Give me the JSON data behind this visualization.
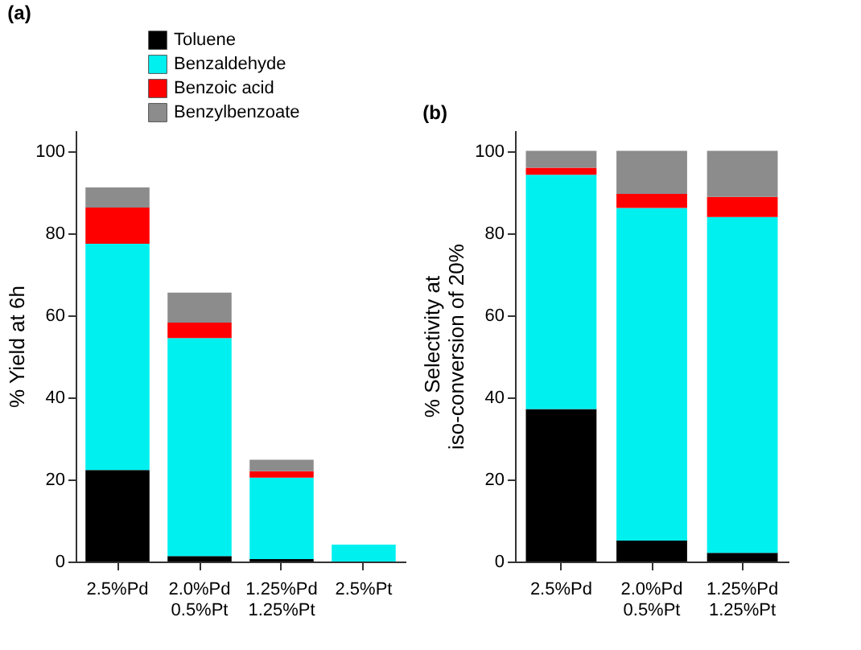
{
  "chart_data": [
    {
      "type": "bar",
      "title": "(a)",
      "ylabel": "% Yield at 6h",
      "stacked": true,
      "categories": [
        "2.5%Pd",
        "2.0%Pd\n0.5%Pt",
        "1.25%Pd\n1.25%Pt",
        "2.5%Pt"
      ],
      "ylim": [
        0,
        105
      ],
      "yticks": [
        0,
        20,
        40,
        60,
        80,
        100
      ],
      "grid": false,
      "legend": "top",
      "series": [
        {
          "name": "Toluene",
          "color": "#000000",
          "values": [
            22.3,
            1.3,
            0.6,
            0
          ]
        },
        {
          "name": "Benzaldehyde",
          "color": "#00f0f0",
          "values": [
            55.1,
            53.1,
            19.8,
            4.1
          ]
        },
        {
          "name": "Benzoic acid",
          "color": "#ff0000",
          "values": [
            8.8,
            3.8,
            1.6,
            0
          ]
        },
        {
          "name": "Benzylbenzoate",
          "color": "#8c8c8c",
          "values": [
            4.9,
            7.3,
            2.8,
            0
          ]
        }
      ]
    },
    {
      "type": "bar",
      "title": "(b)",
      "ylabel": "% Selectivity at\niso-conversion of 20%",
      "stacked": true,
      "categories": [
        "2.5%Pd",
        "2.0%Pd\n0.5%Pt",
        "1.25%Pd\n1.25%Pt"
      ],
      "ylim": [
        0,
        105
      ],
      "yticks": [
        0,
        20,
        40,
        60,
        80,
        100
      ],
      "grid": false,
      "series": [
        {
          "color": "#000000",
          "values": [
            37.1,
            5.1,
            2.1
          ]
        },
        {
          "color": "#00f0f0",
          "values": [
            57.1,
            81.0,
            81.8
          ]
        },
        {
          "color": "#ff0000",
          "values": [
            1.7,
            3.4,
            4.9
          ]
        },
        {
          "color": "#8c8c8c",
          "values": [
            4.1,
            10.5,
            11.2
          ]
        }
      ]
    }
  ]
}
